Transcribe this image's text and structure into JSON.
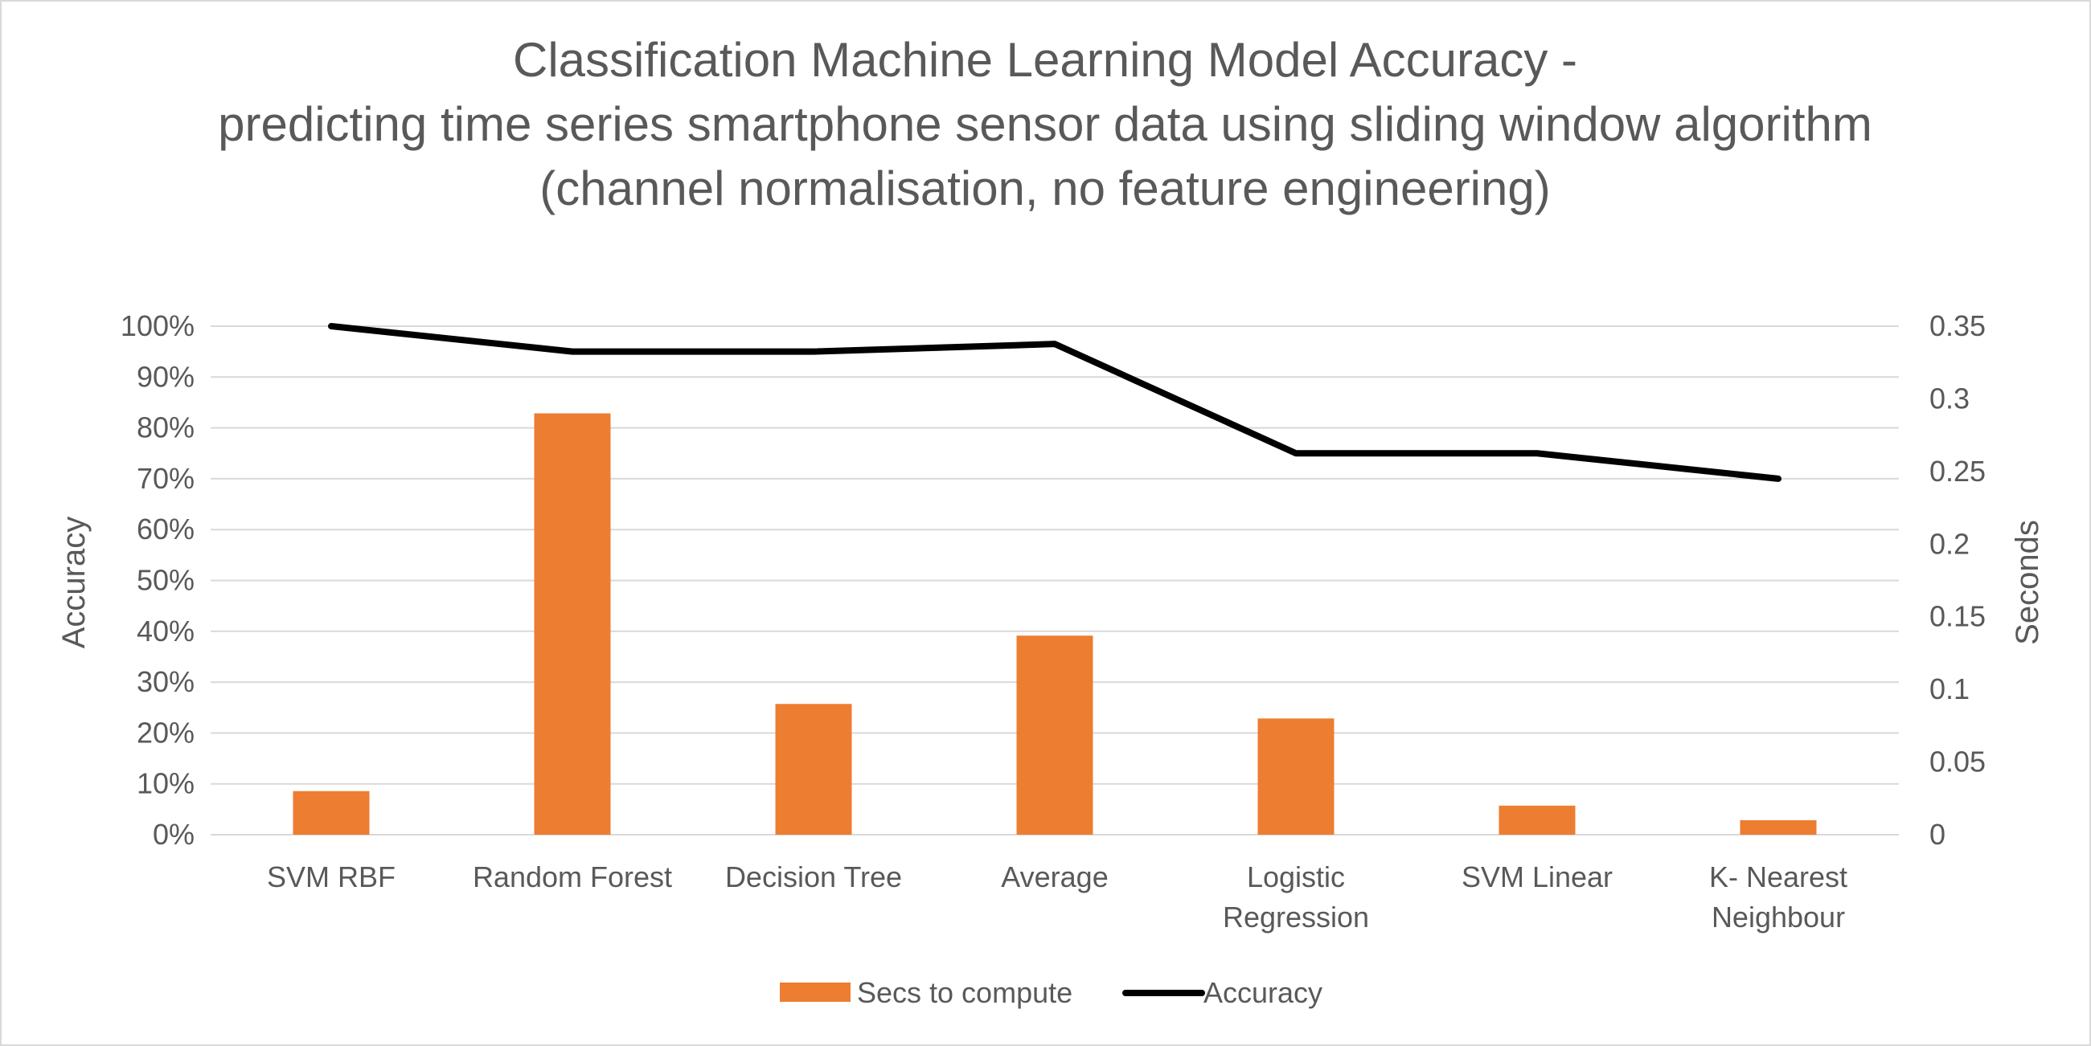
{
  "chart_data": {
    "type": "bar",
    "title_lines": [
      "Classification Machine Learning Model Accuracy -",
      "predicting time series smartphone sensor data using sliding window algorithm",
      "(channel normalisation, no feature engineering)"
    ],
    "categories": [
      [
        "SVM RBF"
      ],
      [
        "Random Forest"
      ],
      [
        "Decision Tree"
      ],
      [
        "Average"
      ],
      [
        "Logistic",
        "Regression"
      ],
      [
        "SVM Linear"
      ],
      [
        "K- Nearest",
        "Neighbour"
      ]
    ],
    "series": [
      {
        "name": "Secs to compute",
        "kind": "bar",
        "axis": "right",
        "color": "#ed7d31",
        "values": [
          0.03,
          0.29,
          0.09,
          0.137,
          0.08,
          0.02,
          0.01
        ]
      },
      {
        "name": "Accuracy",
        "kind": "line",
        "axis": "left",
        "color": "#000000",
        "values": [
          1.0,
          0.95,
          0.95,
          0.965,
          0.75,
          0.75,
          0.7
        ]
      }
    ],
    "ylabel": "Accuracy",
    "y2label": "Seconds",
    "ylim": [
      0,
      1
    ],
    "y2lim": [
      0,
      0.35
    ],
    "y_ticks": [
      "0%",
      "10%",
      "20%",
      "30%",
      "40%",
      "50%",
      "60%",
      "70%",
      "80%",
      "90%",
      "100%"
    ],
    "y2_ticks": [
      "0",
      "0.05",
      "0.1",
      "0.15",
      "0.2",
      "0.25",
      "0.3",
      "0.35"
    ],
    "grid": true,
    "legend": "bottom"
  }
}
